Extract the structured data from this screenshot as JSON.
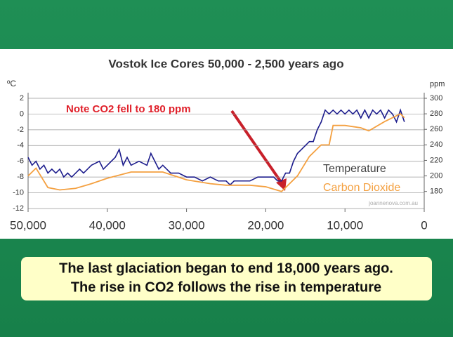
{
  "chart_data": {
    "type": "line",
    "title": "Vostok Ice Cores   50,000 - 2,500 years ago",
    "y_label": "ºC",
    "y2_label": "ppm",
    "annotation": "Note CO2 fell to 180 ppm",
    "source": "joannenova.com.au",
    "xlim": [
      50000,
      0
    ],
    "xticks": [
      {
        "value": 50000,
        "label": "50,000"
      },
      {
        "value": 40000,
        "label": "40,000"
      },
      {
        "value": 30000,
        "label": "30,000"
      },
      {
        "value": 20000,
        "label": "20,000"
      },
      {
        "value": 10000,
        "label": "10,000"
      },
      0
    ],
    "ylim": [
      -12,
      2
    ],
    "yticks": [
      2,
      0,
      -2,
      -4,
      -6,
      -8,
      -10,
      -12
    ],
    "y2lim": [
      158,
      300
    ],
    "y2ticks": [
      300,
      280,
      260,
      240,
      220,
      200,
      180
    ],
    "grid": true,
    "legend": "right",
    "series": [
      {
        "name": "Temperature",
        "color": "#1c1c8c",
        "x": [
          50000,
          49500,
          49000,
          48500,
          48000,
          47500,
          47000,
          46500,
          46000,
          45500,
          45000,
          44500,
          44000,
          43500,
          43000,
          42000,
          41000,
          40500,
          40000,
          39000,
          38500,
          38000,
          37500,
          37000,
          36000,
          35000,
          34500,
          34000,
          33500,
          33000,
          32000,
          31000,
          30000,
          29000,
          28000,
          27000,
          26000,
          25000,
          24500,
          24000,
          23000,
          22000,
          21000,
          20000,
          19000,
          18500,
          18000,
          17500,
          17000,
          16500,
          16000,
          15500,
          15000,
          14500,
          14000,
          13500,
          13000,
          12500,
          12000,
          11500,
          11000,
          10500,
          10000,
          9500,
          9000,
          8500,
          8000,
          7500,
          7000,
          6500,
          6000,
          5500,
          5000,
          4500,
          4000,
          3500,
          3000,
          2500
        ],
        "values": [
          -5.5,
          -6.5,
          -6,
          -7,
          -6.5,
          -7.5,
          -7,
          -7.5,
          -7,
          -8,
          -7.5,
          -8,
          -7.5,
          -7,
          -7.5,
          -6.5,
          -6,
          -7,
          -6.5,
          -5.5,
          -4.5,
          -6.5,
          -5.5,
          -6.5,
          -6,
          -6.5,
          -5,
          -6,
          -7,
          -6.5,
          -7.5,
          -7.5,
          -8,
          -8,
          -8.5,
          -8,
          -8.5,
          -8.5,
          -9,
          -8.5,
          -8.5,
          -8.5,
          -8,
          -8,
          -8,
          -8.5,
          -8.5,
          -7.5,
          -7.5,
          -6,
          -5,
          -4.5,
          -4,
          -3.5,
          -3.5,
          -2,
          -1,
          0.5,
          0,
          0.5,
          0,
          0.5,
          0,
          0.5,
          0,
          0.5,
          -0.5,
          0.5,
          -0.5,
          0.5,
          0,
          0.5,
          -0.5,
          0.5,
          0,
          -1,
          0.5,
          -1
        ]
      },
      {
        "name": "Carbon Dioxide",
        "color": "#f4a040",
        "axis": "y2",
        "x": [
          50000,
          49000,
          47500,
          46000,
          44000,
          42000,
          40000,
          37000,
          35000,
          33000,
          30000,
          27000,
          25000,
          22000,
          20000,
          18000,
          16000,
          14500,
          13000,
          12000,
          11500,
          10000,
          8000,
          7000,
          5000,
          3000,
          2500
        ],
        "values": [
          200,
          210,
          185,
          182,
          184,
          190,
          197,
          205,
          205,
          205,
          195,
          190,
          188,
          188,
          186,
          180,
          200,
          225,
          240,
          240,
          265,
          265,
          262,
          258,
          270,
          280,
          275
        ]
      }
    ]
  },
  "caption": [
    "The last glaciation began to end 18,000 years ago.",
    "The rise in CO2 follows the rise in temperature"
  ]
}
